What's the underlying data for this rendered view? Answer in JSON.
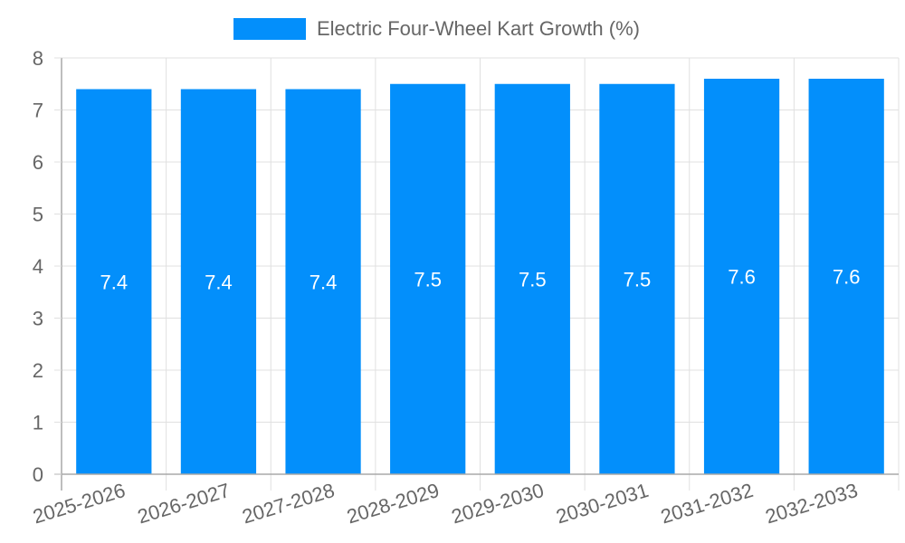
{
  "chart_data": {
    "type": "bar",
    "title": "",
    "legend": [
      {
        "label": "Electric Four-Wheel Kart Growth (%)",
        "color": "#038ffb"
      }
    ],
    "legend_position": "top",
    "categories": [
      "2025-2026",
      "2026-2027",
      "2027-2028",
      "2028-2029",
      "2029-2030",
      "2030-2031",
      "2031-2032",
      "2032-2033"
    ],
    "series": [
      {
        "name": "Electric Four-Wheel Kart Growth (%)",
        "values": [
          7.4,
          7.4,
          7.4,
          7.5,
          7.5,
          7.5,
          7.6,
          7.6
        ],
        "color": "#038ffb"
      }
    ],
    "data_labels": [
      "7.4",
      "7.4",
      "7.4",
      "7.5",
      "7.5",
      "7.5",
      "7.6",
      "7.6"
    ],
    "xlabel": "",
    "ylabel": "",
    "ylim": [
      0,
      8
    ],
    "yticks": [
      0,
      1,
      2,
      3,
      4,
      5,
      6,
      7,
      8
    ],
    "grid": true
  },
  "colors": {
    "bar": "#038ffb",
    "grid": "#e0e0e0",
    "axis": "#a8a8a8",
    "tick_text": "#666666",
    "data_label": "#ffffff"
  }
}
